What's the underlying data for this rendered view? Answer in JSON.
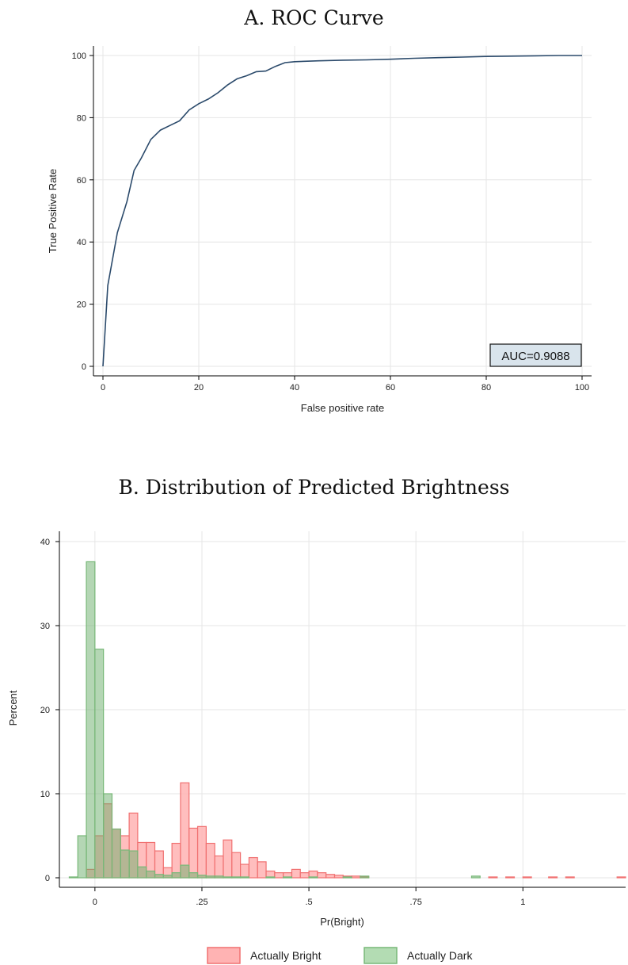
{
  "chart_data": [
    {
      "type": "line",
      "title": "A. ROC Curve",
      "xlabel": "False positive rate",
      "ylabel": "True Positive Rate",
      "xlim": [
        0,
        100
      ],
      "ylim": [
        0,
        100
      ],
      "xticks": [
        "0",
        "20",
        "40",
        "60",
        "80",
        "100"
      ],
      "yticks": [
        "0",
        "20",
        "40",
        "60",
        "80",
        "100"
      ],
      "grid": true,
      "annotation": "AUC=0.9088",
      "annotation_position": "bottom-right",
      "line_color": "#2b4a6b",
      "x": [
        0,
        1,
        3,
        5,
        6.5,
        8,
        10,
        12,
        14,
        16,
        18,
        20,
        22,
        24,
        26,
        28,
        30,
        32,
        34,
        36,
        38,
        40,
        45,
        50,
        55,
        60,
        65,
        70,
        75,
        80,
        85,
        90,
        95,
        100
      ],
      "y": [
        0,
        26,
        43,
        53,
        63,
        67,
        73,
        76,
        77.5,
        79,
        82.5,
        84.5,
        86,
        88,
        90.5,
        92.5,
        93.5,
        94.8,
        95,
        96.5,
        97.7,
        98,
        98.3,
        98.5,
        98.6,
        98.8,
        99.1,
        99.3,
        99.5,
        99.7,
        99.8,
        99.9,
        100,
        100
      ]
    },
    {
      "type": "bar",
      "title": "B. Distribution of Predicted Brightness",
      "xlabel": "Pr(Bright)",
      "ylabel": "Percent",
      "xlim": [
        -0.083,
        1.24
      ],
      "ylim": [
        0,
        40
      ],
      "xticks": [
        {
          "value": 0,
          "label": "0"
        },
        {
          "value": 0.25,
          "label": ".25"
        },
        {
          "value": 0.5,
          "label": ".5"
        },
        {
          "value": 0.75,
          "label": ".75"
        },
        {
          "value": 1,
          "label": "1"
        }
      ],
      "yticks": [
        "0",
        "10",
        "20",
        "30",
        "40"
      ],
      "grid": true,
      "legend_position": "bottom",
      "series": [
        {
          "name": "Actually Bright",
          "fill": "#ffb3b3",
          "stroke": "#f07070",
          "bins": [
            [
              -0.02,
              1
            ],
            [
              0,
              5
            ],
            [
              0.02,
              8.8
            ],
            [
              0.04,
              5.8
            ],
            [
              0.06,
              5
            ],
            [
              0.08,
              7.7
            ],
            [
              0.1,
              4.2
            ],
            [
              0.12,
              4.2
            ],
            [
              0.14,
              3.2
            ],
            [
              0.16,
              1.2
            ],
            [
              0.18,
              4.1
            ],
            [
              0.2,
              11.3
            ],
            [
              0.22,
              5.9
            ],
            [
              0.24,
              6.1
            ],
            [
              0.26,
              4.1
            ],
            [
              0.28,
              2.6
            ],
            [
              0.3,
              4.5
            ],
            [
              0.32,
              3
            ],
            [
              0.34,
              1.6
            ],
            [
              0.36,
              2.4
            ],
            [
              0.38,
              1.9
            ],
            [
              0.4,
              0.8
            ],
            [
              0.42,
              0.6
            ],
            [
              0.44,
              0.6
            ],
            [
              0.46,
              1
            ],
            [
              0.48,
              0.6
            ],
            [
              0.5,
              0.8
            ],
            [
              0.52,
              0.6
            ],
            [
              0.54,
              0.4
            ],
            [
              0.56,
              0.3
            ],
            [
              0.58,
              0.2
            ],
            [
              0.6,
              0.2
            ],
            [
              0.62,
              0.1
            ],
            [
              0.92,
              0.1
            ],
            [
              0.96,
              0.1
            ],
            [
              1.0,
              0.1
            ],
            [
              1.06,
              0.1
            ],
            [
              1.1,
              0.1
            ],
            [
              1.22,
              0.1
            ]
          ]
        },
        {
          "name": "Actually Dark",
          "fill": "#b3dcb3",
          "stroke": "#78b878",
          "bins": [
            [
              -0.06,
              0.1
            ],
            [
              -0.04,
              5
            ],
            [
              -0.02,
              37.6
            ],
            [
              0,
              27.2
            ],
            [
              0.02,
              10
            ],
            [
              0.04,
              5.8
            ],
            [
              0.06,
              3.3
            ],
            [
              0.08,
              3.2
            ],
            [
              0.1,
              1.3
            ],
            [
              0.12,
              0.8
            ],
            [
              0.14,
              0.4
            ],
            [
              0.16,
              0.3
            ],
            [
              0.18,
              0.6
            ],
            [
              0.2,
              1.5
            ],
            [
              0.22,
              0.6
            ],
            [
              0.24,
              0.3
            ],
            [
              0.26,
              0.2
            ],
            [
              0.28,
              0.2
            ],
            [
              0.3,
              0.1
            ],
            [
              0.32,
              0.1
            ],
            [
              0.34,
              0.1
            ],
            [
              0.4,
              0.1
            ],
            [
              0.44,
              0.1
            ],
            [
              0.5,
              0.1
            ],
            [
              0.58,
              0.1
            ],
            [
              0.62,
              0.2
            ],
            [
              0.88,
              0.2
            ]
          ]
        }
      ]
    }
  ]
}
